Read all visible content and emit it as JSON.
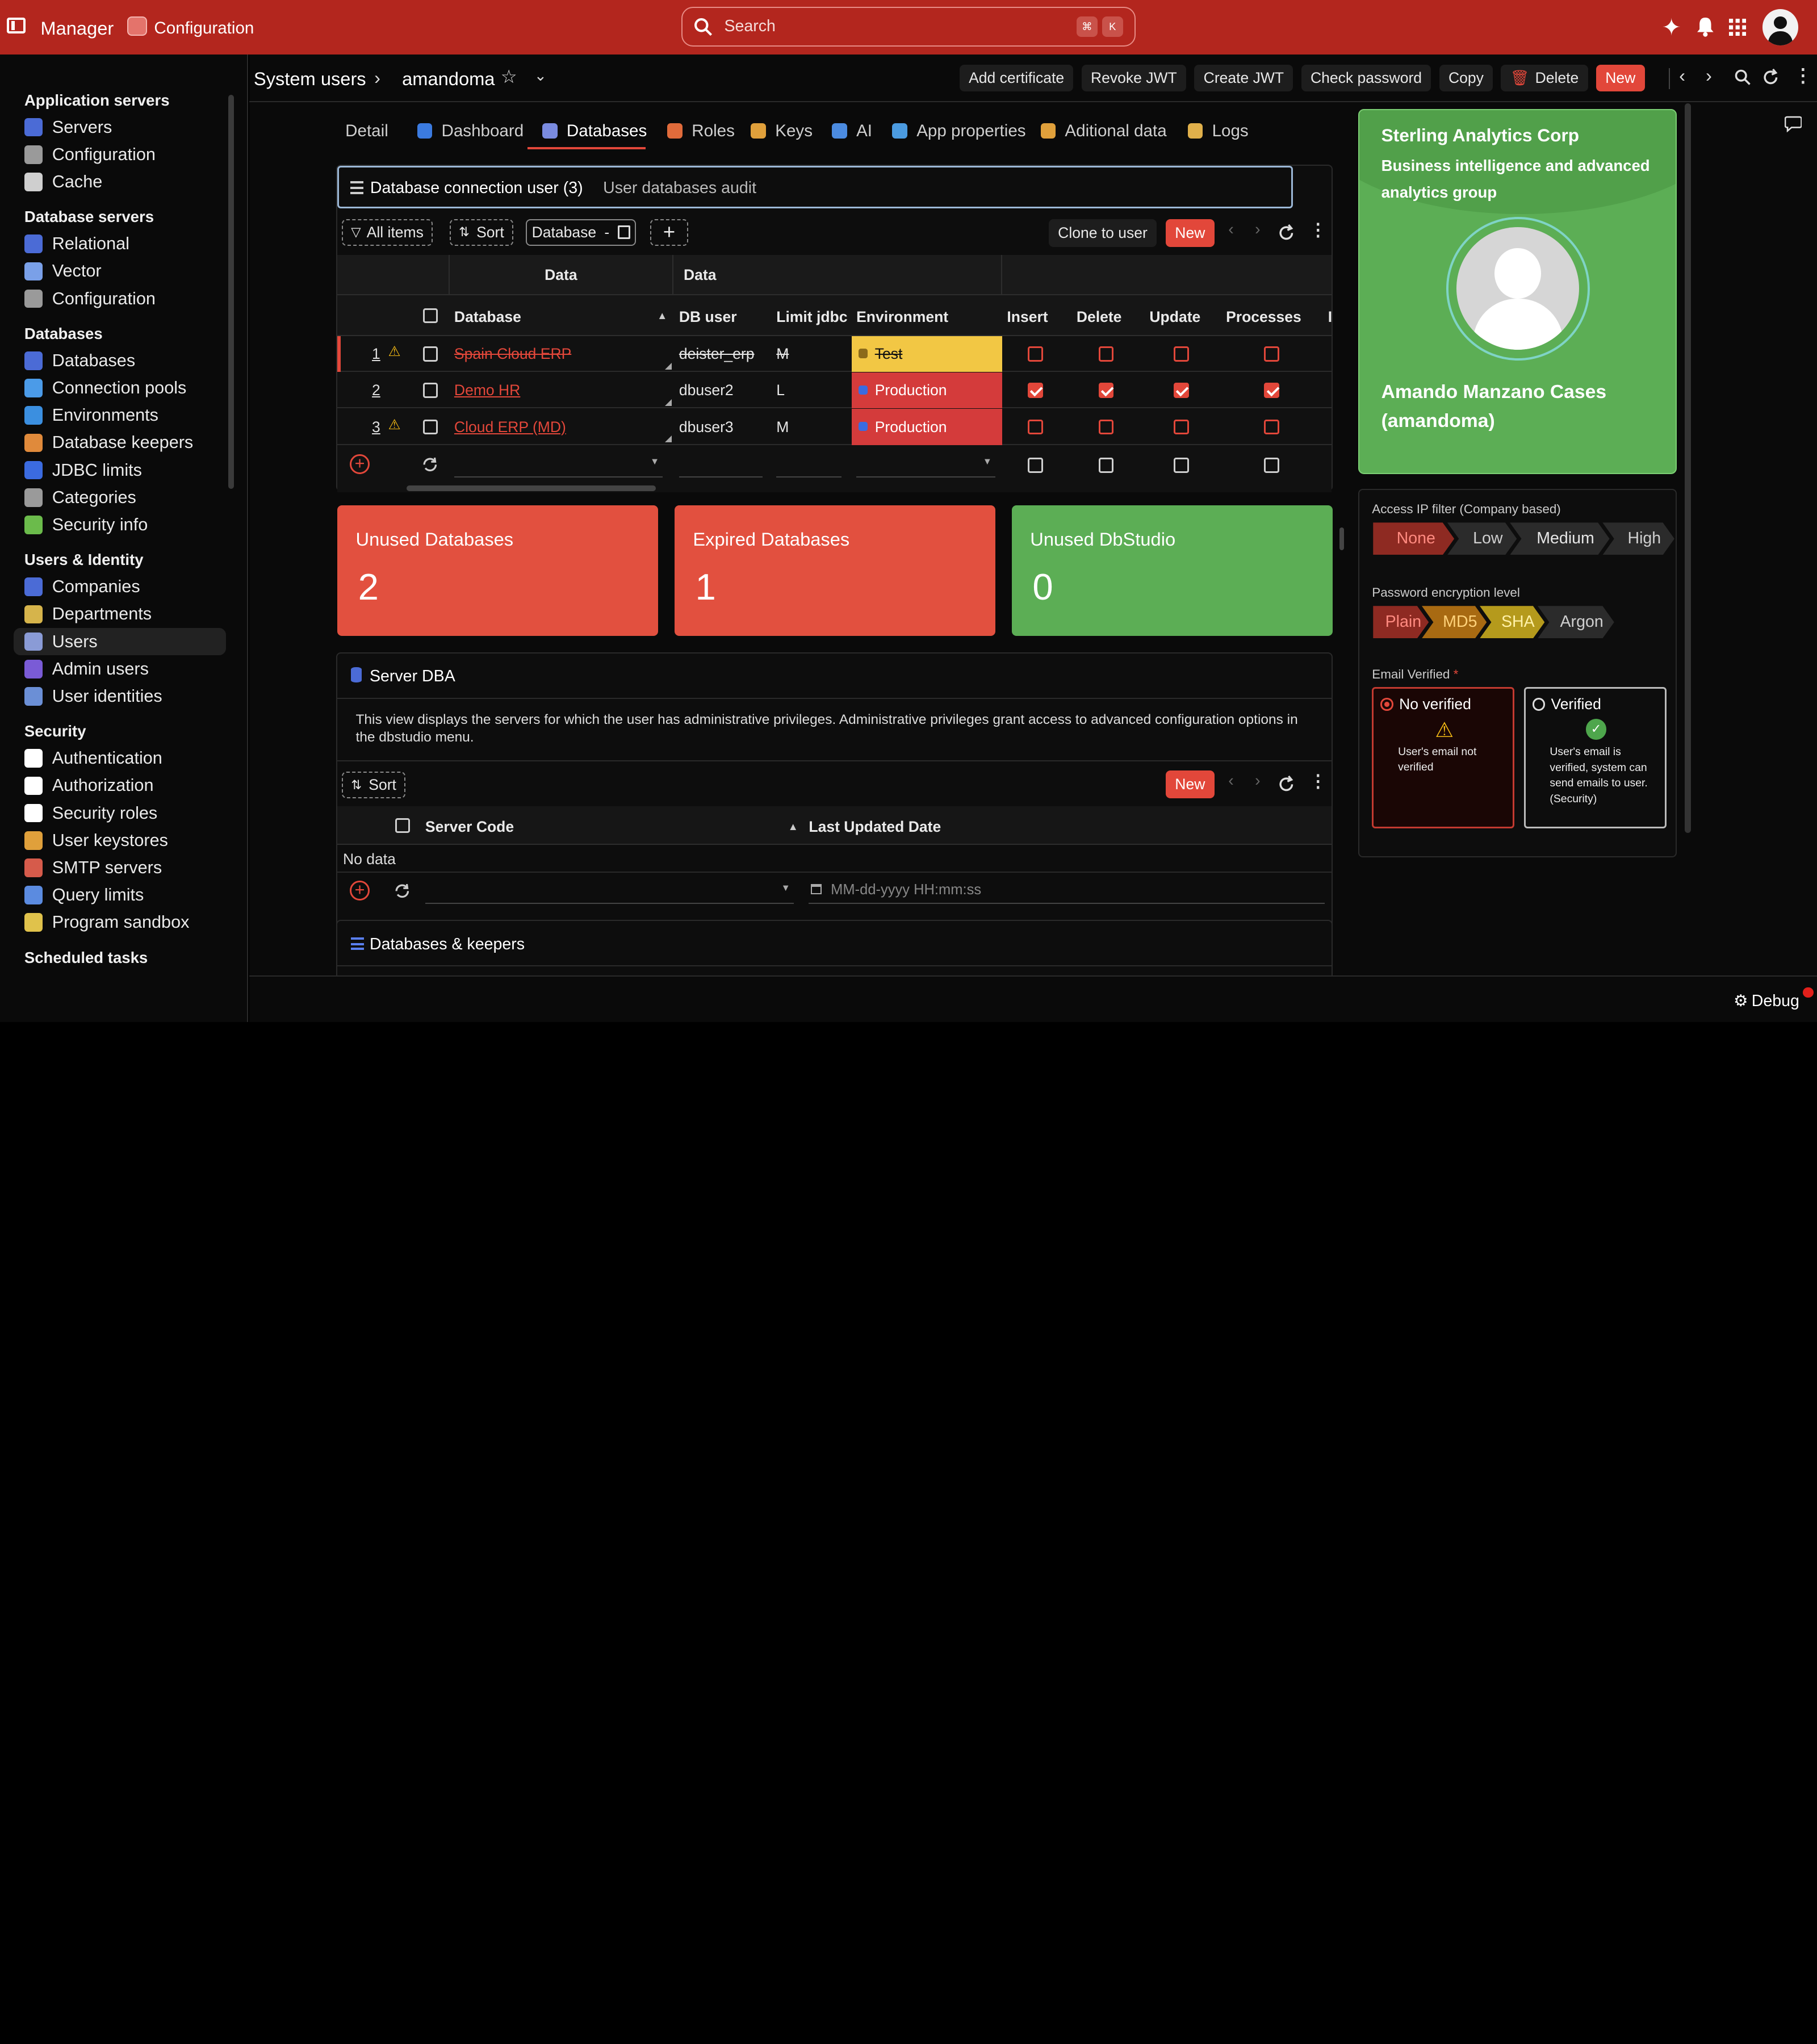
{
  "topbar": {
    "app_name": "Manager",
    "module": "Configuration",
    "search_placeholder": "Search",
    "kbd1": "⌘",
    "kbd2": "K"
  },
  "sidebar": {
    "groups": [
      {
        "title": "Application servers",
        "items": [
          "Servers",
          "Configuration",
          "Cache"
        ]
      },
      {
        "title": "Database servers",
        "items": [
          "Relational",
          "Vector",
          "Configuration"
        ]
      },
      {
        "title": "Databases",
        "items": [
          "Databases",
          "Connection pools",
          "Environments",
          "Database keepers",
          "JDBC limits",
          "Categories",
          "Security info"
        ]
      },
      {
        "title": "Users & Identity",
        "items": [
          "Companies",
          "Departments",
          "Users",
          "Admin users",
          "User identities"
        ]
      },
      {
        "title": "Security",
        "items": [
          "Authentication",
          "Authorization",
          "Security roles",
          "User keystores",
          "SMTP servers",
          "Query limits",
          "Program sandbox"
        ]
      },
      {
        "title": "Scheduled tasks",
        "items": []
      }
    ]
  },
  "header": {
    "breadcrumb_root": "System users",
    "breadcrumb_current": "amandoma",
    "actions": [
      "Add certificate",
      "Revoke JWT",
      "Create JWT",
      "Check password",
      "Copy",
      "Delete"
    ],
    "new_label": "New"
  },
  "tabs": [
    "Detail",
    "Dashboard",
    "Databases",
    "Roles",
    "Keys",
    "AI",
    "App properties",
    "Aditional data",
    "Logs"
  ],
  "db_panel": {
    "subtab_active": "Database connection user (3)",
    "subtab_other": "User databases audit",
    "toolbar": {
      "all_items": "All items",
      "sort": "Sort",
      "filter_field": "Database",
      "filter_sep": "-",
      "clone": "Clone to user",
      "new": "New"
    },
    "group_headers": [
      "Data",
      "Data"
    ],
    "columns": [
      "Database",
      "DB user",
      "Limit jdbc",
      "Environment",
      "Insert",
      "Delete",
      "Update",
      "Processes"
    ],
    "rows": [
      {
        "num": "1",
        "database": "Spain Cloud ERP",
        "db_user": "deister_erp",
        "limit": "M",
        "environment": "Test",
        "insert": false,
        "delete": false,
        "update": false,
        "processes": false
      },
      {
        "num": "2",
        "database": "Demo HR",
        "db_user": "dbuser2",
        "limit": "L",
        "environment": "Production",
        "insert": true,
        "delete": true,
        "update": true,
        "processes": true
      },
      {
        "num": "3",
        "database": "Cloud ERP (MD)",
        "db_user": "dbuser3",
        "limit": "M",
        "environment": "Production",
        "insert": false,
        "delete": false,
        "update": false,
        "processes": false
      }
    ]
  },
  "cards": [
    {
      "title": "Unused Databases",
      "value": "2",
      "color": "#e2503f"
    },
    {
      "title": "Expired Databases",
      "value": "1",
      "color": "#e2503f"
    },
    {
      "title": "Unused DbStudio",
      "value": "0",
      "color": "#5cae55"
    }
  ],
  "server_dba": {
    "title": "Server DBA",
    "description": "This view displays the servers for which the user has administrative privileges. Administrative privileges grant access to advanced configuration options in the dbstudio menu.",
    "sort": "Sort",
    "new": "New",
    "col1": "Server Code",
    "col2": "Last Updated Date",
    "no_data": "No data",
    "date_placeholder": "MM-dd-yyyy HH:mm:ss"
  },
  "keepers": {
    "title": "Databases & keepers"
  },
  "profile": {
    "company": "Sterling Analytics Corp",
    "subtitle": "Business intelligence and advanced analytics group",
    "name": "Amando Manzano Cases (amandoma)",
    "ip_label": "Access IP filter (Company based)",
    "ip_levels": [
      "None",
      "Low",
      "Medium",
      "High"
    ],
    "pwd_label": "Password encryption level",
    "pwd_levels": [
      "Plain",
      "MD5",
      "SHA",
      "Argon"
    ],
    "email_label": "Email Verified",
    "required_mark": "*",
    "opt_no": "No verified",
    "opt_no_desc": "User's email not verified",
    "opt_yes": "Verified",
    "opt_yes_desc": "User's email is verified, system can send emails to user. (Security)"
  },
  "footer": {
    "debug": "Debug"
  }
}
